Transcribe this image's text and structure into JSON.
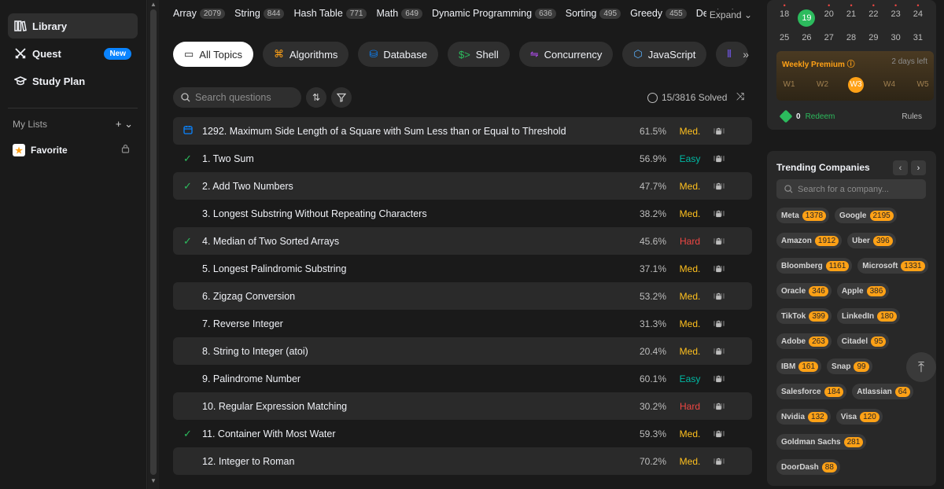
{
  "sidebar": {
    "nav": [
      {
        "label": "Library",
        "icon": "library-icon"
      },
      {
        "label": "Quest",
        "icon": "quest-icon",
        "badge": "New"
      },
      {
        "label": "Study Plan",
        "icon": "graduation-cap-icon"
      }
    ],
    "my_lists_label": "My Lists",
    "favorite_label": "Favorite"
  },
  "tags": [
    {
      "name": "Array",
      "count": "2079"
    },
    {
      "name": "String",
      "count": "844"
    },
    {
      "name": "Hash Table",
      "count": "771"
    },
    {
      "name": "Math",
      "count": "649"
    },
    {
      "name": "Dynamic Programming",
      "count": "636"
    },
    {
      "name": "Sorting",
      "count": "495"
    },
    {
      "name": "Greedy",
      "count": "455"
    },
    {
      "name": "Depth-First Search",
      "count": ""
    }
  ],
  "expand_label": "Expand",
  "categories": [
    {
      "label": "All Topics",
      "icon": "inbox-icon",
      "color": "#262626"
    },
    {
      "label": "Algorithms",
      "icon": "algorithm-icon",
      "color": "#ffa116"
    },
    {
      "label": "Database",
      "icon": "database-icon",
      "color": "#0a84ff"
    },
    {
      "label": "Shell",
      "icon": "shell-icon",
      "color": "#2cbb5d"
    },
    {
      "label": "Concurrency",
      "icon": "concurrency-icon",
      "color": "#b44cf5"
    },
    {
      "label": "JavaScript",
      "icon": "javascript-icon",
      "color": "#5ab2ff"
    },
    {
      "label": "",
      "icon": "pandas-icon",
      "color": "#7a5cff"
    }
  ],
  "search": {
    "placeholder": "Search questions"
  },
  "solved_text": "15/3816 Solved",
  "questions": [
    {
      "status": "daily",
      "title": "1292. Maximum Side Length of a Square with Sum Less than or Equal to Threshold",
      "acceptance": "61.5%",
      "difficulty": "Med."
    },
    {
      "status": "solved",
      "title": "1. Two Sum",
      "acceptance": "56.9%",
      "difficulty": "Easy"
    },
    {
      "status": "solved",
      "title": "2. Add Two Numbers",
      "acceptance": "47.7%",
      "difficulty": "Med."
    },
    {
      "status": "",
      "title": "3. Longest Substring Without Repeating Characters",
      "acceptance": "38.2%",
      "difficulty": "Med."
    },
    {
      "status": "solved",
      "title": "4. Median of Two Sorted Arrays",
      "acceptance": "45.6%",
      "difficulty": "Hard"
    },
    {
      "status": "",
      "title": "5. Longest Palindromic Substring",
      "acceptance": "37.1%",
      "difficulty": "Med."
    },
    {
      "status": "",
      "title": "6. Zigzag Conversion",
      "acceptance": "53.2%",
      "difficulty": "Med."
    },
    {
      "status": "",
      "title": "7. Reverse Integer",
      "acceptance": "31.3%",
      "difficulty": "Med."
    },
    {
      "status": "",
      "title": "8. String to Integer (atoi)",
      "acceptance": "20.4%",
      "difficulty": "Med."
    },
    {
      "status": "",
      "title": "9. Palindrome Number",
      "acceptance": "60.1%",
      "difficulty": "Easy"
    },
    {
      "status": "",
      "title": "10. Regular Expression Matching",
      "acceptance": "30.2%",
      "difficulty": "Hard"
    },
    {
      "status": "solved",
      "title": "11. Container With Most Water",
      "acceptance": "59.3%",
      "difficulty": "Med."
    },
    {
      "status": "",
      "title": "12. Integer to Roman",
      "acceptance": "70.2%",
      "difficulty": "Med."
    }
  ],
  "difficulty_colors": {
    "Easy": "#00b8a3",
    "Med.": "#ffc01e",
    "Hard": "#ef4743"
  },
  "calendar": {
    "row1": [
      "18",
      "19",
      "20",
      "21",
      "22",
      "23",
      "24"
    ],
    "row2": [
      "25",
      "26",
      "27",
      "28",
      "29",
      "30",
      "31"
    ],
    "today": "19"
  },
  "premium": {
    "title": "Weekly Premium",
    "left": "2 days left",
    "weeks": [
      "W1",
      "W2",
      "W3",
      "W4",
      "W5"
    ],
    "current_week": "W3"
  },
  "redeem": {
    "coins": "0",
    "label": "Redeem",
    "rules": "Rules"
  },
  "trending": {
    "title": "Trending Companies",
    "search_placeholder": "Search for a company...",
    "companies": [
      {
        "name": "Meta",
        "count": "1378"
      },
      {
        "name": "Google",
        "count": "2195"
      },
      {
        "name": "Amazon",
        "count": "1912"
      },
      {
        "name": "Uber",
        "count": "396"
      },
      {
        "name": "Bloomberg",
        "count": "1161"
      },
      {
        "name": "Microsoft",
        "count": "1331"
      },
      {
        "name": "Oracle",
        "count": "346"
      },
      {
        "name": "Apple",
        "count": "386"
      },
      {
        "name": "TikTok",
        "count": "399"
      },
      {
        "name": "LinkedIn",
        "count": "180"
      },
      {
        "name": "Adobe",
        "count": "263"
      },
      {
        "name": "Citadel",
        "count": "95"
      },
      {
        "name": "IBM",
        "count": "161"
      },
      {
        "name": "Snap",
        "count": "99"
      },
      {
        "name": "Salesforce",
        "count": "184"
      },
      {
        "name": "Atlassian",
        "count": "64"
      },
      {
        "name": "Nvidia",
        "count": "132"
      },
      {
        "name": "Visa",
        "count": "120"
      },
      {
        "name": "Goldman Sachs",
        "count": "281"
      },
      {
        "name": "DoorDash",
        "count": "88"
      }
    ]
  }
}
